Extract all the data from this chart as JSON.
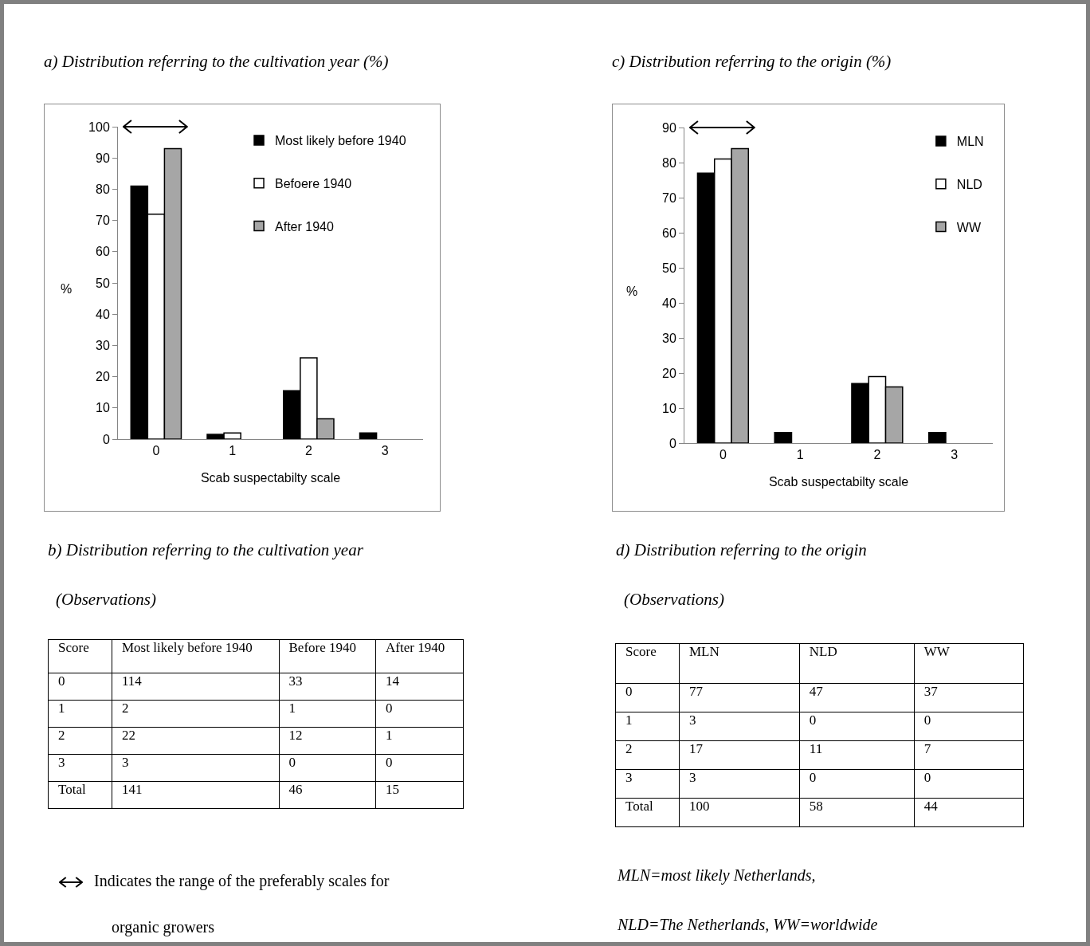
{
  "chart_data": [
    {
      "type": "bar",
      "title": "a) Distribution referring to the cultivation year (%)",
      "xlabel": "Scab suspectabilty scale",
      "ylabel": "%",
      "categories": [
        "0",
        "1",
        "2",
        "3"
      ],
      "ylim": [
        0,
        100
      ],
      "yticks": [
        0,
        10,
        20,
        30,
        40,
        50,
        60,
        70,
        80,
        90,
        100
      ],
      "legend": "top right",
      "grid": false,
      "series": [
        {
          "name": "Most likely before 1940",
          "color": "#000000",
          "values": [
            81,
            1.5,
            15.5,
            2
          ]
        },
        {
          "name": "Befoere 1940",
          "color": "#ffffff",
          "values": [
            72,
            2,
            26,
            0
          ]
        },
        {
          "name": "After 1940",
          "color": "#a6a6a6",
          "values": [
            93,
            0,
            6.5,
            0
          ]
        }
      ]
    },
    {
      "type": "heatmap",
      "data_labels": true,
      "title": "b) Distribution referring to the cultivation year",
      "subtitle": "(Observations)",
      "ylabel": "Score",
      "categories": [
        "Most likely before 1940",
        "Before 1940",
        "After 1940"
      ],
      "y_categories": [
        "0",
        "1",
        "2",
        "3",
        "Total"
      ],
      "cells": [
        [
          114,
          33,
          14
        ],
        [
          2,
          1,
          0
        ],
        [
          22,
          12,
          1
        ],
        [
          3,
          0,
          0
        ],
        [
          141,
          46,
          15
        ]
      ],
      "annotations": [
        "Indicates the range of the preferably scales for organic growers"
      ]
    },
    {
      "type": "bar",
      "title": "c) Distribution referring to the origin (%)",
      "xlabel": "Scab suspectabilty scale",
      "ylabel": "%",
      "categories": [
        "0",
        "1",
        "2",
        "3"
      ],
      "ylim": [
        0,
        90
      ],
      "yticks": [
        0,
        10,
        20,
        30,
        40,
        50,
        60,
        70,
        80,
        90
      ],
      "legend": "top right",
      "grid": false,
      "series": [
        {
          "name": "MLN",
          "color": "#000000",
          "values": [
            77,
            3,
            17,
            3
          ]
        },
        {
          "name": "NLD",
          "color": "#ffffff",
          "values": [
            81,
            0,
            19,
            0
          ]
        },
        {
          "name": "WW",
          "color": "#a6a6a6",
          "values": [
            84,
            0,
            16,
            0
          ]
        }
      ]
    },
    {
      "type": "heatmap",
      "data_labels": true,
      "title": "d) Distribution referring to the origin",
      "subtitle": "(Observations)",
      "ylabel": "Score",
      "categories": [
        "MLN",
        "NLD",
        "WW"
      ],
      "y_categories": [
        "0",
        "1",
        "2",
        "3",
        "Total"
      ],
      "cells": [
        [
          77,
          47,
          37
        ],
        [
          3,
          0,
          0
        ],
        [
          17,
          11,
          7
        ],
        [
          3,
          0,
          0
        ],
        [
          100,
          58,
          44
        ]
      ],
      "annotations": [
        "MLN=most likely Netherlands,",
        "NLD=The Netherlands, WW=worldwide"
      ]
    }
  ]
}
